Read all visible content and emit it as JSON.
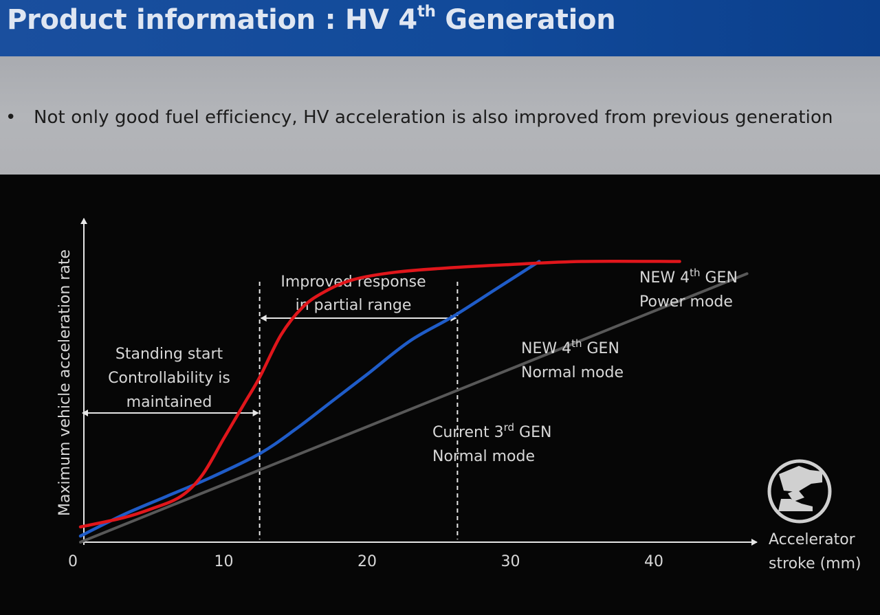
{
  "slide": {
    "title_main": "Product information : HV 4",
    "title_sup": "th",
    "title_tail": " Generation",
    "bullet_symbol": "•",
    "bullet_text": "Not only good fuel efficiency, HV acceleration is also improved from previous generation"
  },
  "chart_data": {
    "type": "line",
    "xlabel_lines": [
      "Accelerator",
      "stroke (mm)"
    ],
    "ylabel": "Maximum vehicle acceleration rate",
    "x_ticks": [
      0,
      10,
      20,
      30,
      40
    ],
    "xlim": [
      0,
      47
    ],
    "ylim": [
      0,
      100
    ],
    "grid": false,
    "series": [
      {
        "key": "red",
        "name_lines": [
          [
            "NEW 4",
            "th",
            " GEN"
          ],
          [
            "Power mode"
          ]
        ],
        "color": "#e0161b",
        "x": [
          0,
          3,
          5,
          7,
          8.5,
          10,
          11.5,
          12.5,
          14,
          15.5,
          17,
          19,
          22,
          26,
          30,
          35,
          41.8
        ],
        "y": [
          5,
          8,
          11,
          15,
          22,
          34,
          46,
          54,
          68,
          77,
          82,
          86,
          88.5,
          90,
          91,
          92,
          92
        ]
      },
      {
        "key": "blue",
        "name_lines": [
          [
            "NEW 4",
            "th",
            " GEN"
          ],
          [
            "Normal mode"
          ]
        ],
        "color": "#1f5cc8",
        "x": [
          0,
          3,
          6,
          9,
          12.5,
          15,
          17.5,
          20,
          23,
          26,
          29,
          32
        ],
        "y": [
          2,
          9,
          15,
          21,
          29,
          37,
          46,
          55,
          66,
          74,
          83,
          92
        ]
      },
      {
        "key": "gray",
        "name_lines": [
          [
            "Current 3",
            "rd",
            " GEN"
          ],
          [
            "Normal mode"
          ]
        ],
        "color": "#585858",
        "x": [
          0,
          46.5
        ],
        "y": [
          0,
          88
        ]
      }
    ],
    "annotations": {
      "standing_start": [
        "Standing start",
        "Controllability is",
        "maintained"
      ],
      "improved_response": [
        "Improved response",
        "in partial range"
      ],
      "dashed_lines_x": [
        12.5,
        26.3
      ],
      "standing_arrow_x": [
        0,
        12.5
      ],
      "improved_arrow_x": [
        12.5,
        26.3
      ]
    }
  },
  "icon": {
    "name": "accelerator-pedal-icon"
  }
}
